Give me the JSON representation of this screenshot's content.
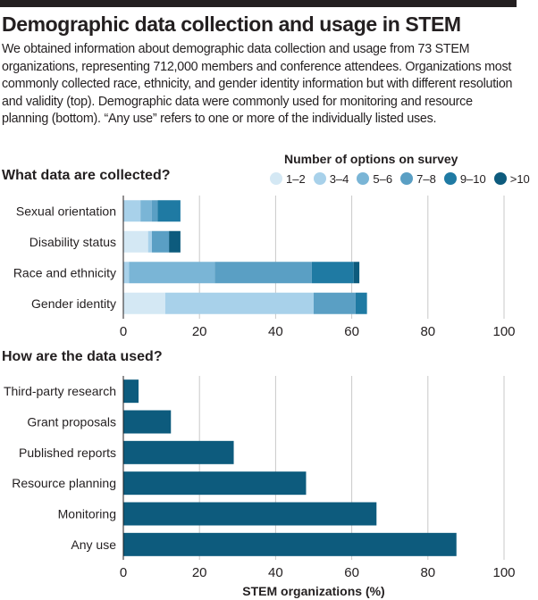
{
  "title": "Demographic data collection and usage in STEM",
  "description": "We obtained information about demographic data collection and usage from 73 STEM organizations, representing 712,000 members and conference attendees. Organizations most commonly collected race, ethnicity, and gender identity information but with different resolution and validity (top). Demographic data were commonly used for monitoring and resource planning (bottom). “Any use” refers to one or more of the individually listed uses.",
  "legend": {
    "title": "Number of options on survey",
    "items": [
      {
        "label": "1–2",
        "color": "#d4e8f4"
      },
      {
        "label": "3–4",
        "color": "#a8d1ea"
      },
      {
        "label": "5–6",
        "color": "#7ab5d6"
      },
      {
        "label": "7–8",
        "color": "#5a9fc4"
      },
      {
        "label": "9–10",
        "color": "#1f7aa3"
      },
      {
        "label": ">10",
        "color": "#0d5b7d"
      }
    ]
  },
  "chart_data": [
    {
      "type": "bar",
      "orientation": "horizontal",
      "stacked": true,
      "title": "What data are collected?",
      "categories": [
        "Sexual orientation",
        "Disability status",
        "Race and ethnicity",
        "Gender identity"
      ],
      "series": [
        {
          "name": "1–2",
          "color": "#d4e8f4",
          "values": [
            0,
            6.5,
            0,
            11
          ]
        },
        {
          "name": "3–4",
          "color": "#a8d1ea",
          "values": [
            4.5,
            1,
            1.5,
            39
          ]
        },
        {
          "name": "5–6",
          "color": "#7ab5d6",
          "values": [
            3,
            0,
            22.5,
            0
          ]
        },
        {
          "name": "7–8",
          "color": "#5a9fc4",
          "values": [
            1.5,
            4.5,
            25.5,
            11
          ]
        },
        {
          "name": "9–10",
          "color": "#1f7aa3",
          "values": [
            6,
            0,
            11,
            3
          ]
        },
        {
          "name": ">10",
          "color": "#0d5b7d",
          "values": [
            0,
            3,
            1.5,
            0
          ]
        }
      ],
      "xlim": [
        0,
        100
      ],
      "xticks": [
        "0",
        "20",
        "40",
        "60",
        "80",
        "100"
      ]
    },
    {
      "type": "bar",
      "orientation": "horizontal",
      "title": "How are the data used?",
      "color": "#0d5b7d",
      "categories": [
        "Third-party research",
        "Grant proposals",
        "Published reports",
        "Resource planning",
        "Monitoring",
        "Any use"
      ],
      "values": [
        4,
        12.5,
        29,
        48,
        66.5,
        87.5
      ],
      "xlim": [
        0,
        100
      ],
      "xticks": [
        "0",
        "20",
        "40",
        "60",
        "80",
        "100"
      ],
      "xlabel": "STEM organizations (%)"
    }
  ]
}
